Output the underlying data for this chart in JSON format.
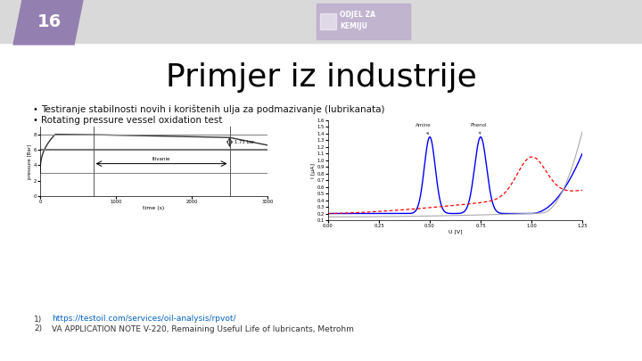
{
  "slide_number": "16",
  "title": "Primjer iz industrije",
  "bullets": [
    "Testiranje stabilnosti novih i korištenih ulja za podmazivanje (lubrikanata)",
    "Rotating pressure vessel oxidation test"
  ],
  "footnotes": [
    {
      "num": "1)",
      "text": "https://testoil.com/services/oil-analysis/rpvot/",
      "is_link": true
    },
    {
      "num": "2)",
      "text": "VA APPLICATION NOTE V-220, Remaining Useful Life of lubricants, Metrohm",
      "is_link": false
    }
  ],
  "header_bg": "#d9d9d9",
  "slide_number_bg": "#9480b0",
  "title_color": "#000000",
  "bullet_color": "#111111",
  "footnote_link_color": "#0563c1",
  "footnote_color": "#333333",
  "bg_color": "#ffffff",
  "logo_bg": "#b8a8cc",
  "logo_text": "white",
  "logo_line1": "ODJEL ZA",
  "logo_line2": "KEMIJU"
}
